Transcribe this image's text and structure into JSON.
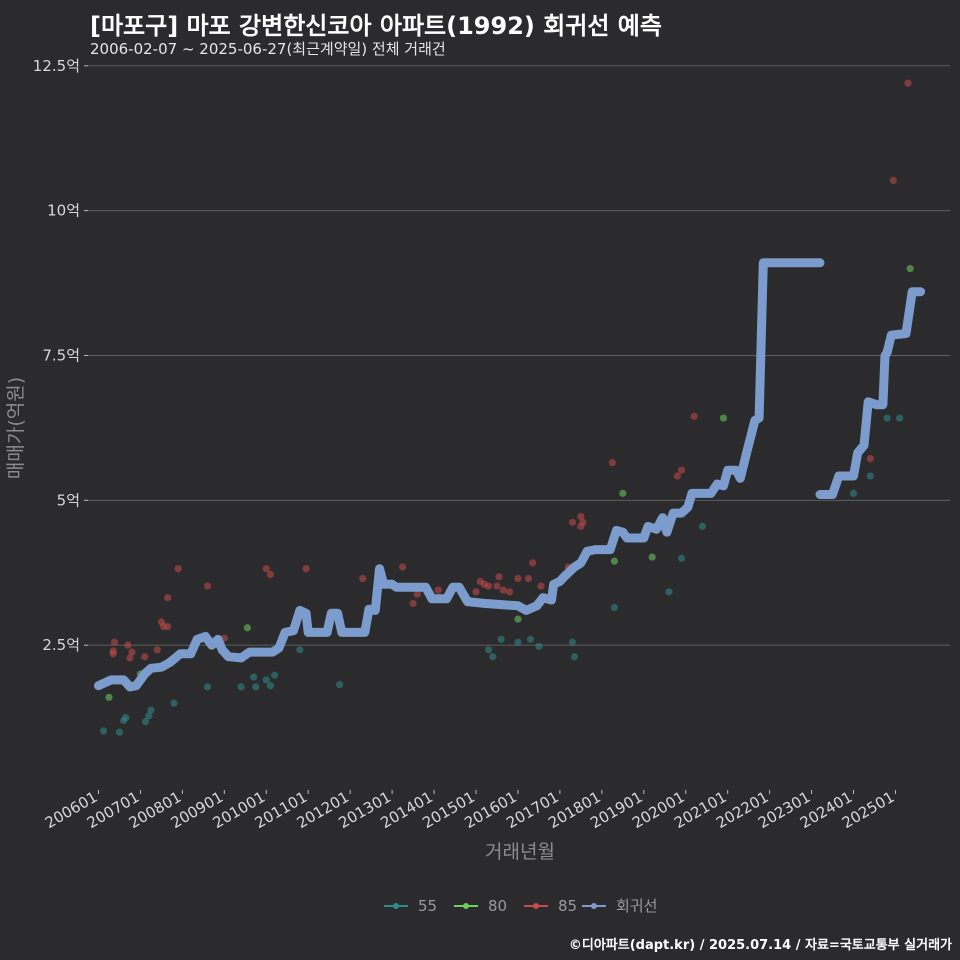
{
  "title": "[마포구] 마포 강변한신코아 아파트(1992) 회귀선 예측",
  "subtitle": "2006-02-07 ~ 2025-06-27(최근계약일) 전체 거래건",
  "credit": "©디아파트(dapt.kr) / 2025.07.14 / 자료=국토교통부 실거래가",
  "colors": {
    "s55": "#2f8c8c",
    "s80": "#6fcf5f",
    "s85": "#c94a4a",
    "reg": "#7b9ccc"
  },
  "chart_data": {
    "type": "scatter",
    "xlabel": "거래년월",
    "ylabel": "매매가(억원)",
    "ylim": [
      0.0,
      12.6
    ],
    "xlim": [
      2005.75,
      2026.3
    ],
    "yticks": [
      {
        "v": 2.5,
        "label": "2.5억"
      },
      {
        "v": 5,
        "label": "5억"
      },
      {
        "v": 7.5,
        "label": "7.5억"
      },
      {
        "v": 10,
        "label": "10억"
      },
      {
        "v": 12.5,
        "label": "12.5억"
      }
    ],
    "xticks": [
      "200601",
      "200701",
      "200801",
      "200901",
      "201001",
      "201101",
      "201201",
      "201301",
      "201401",
      "201501",
      "201601",
      "201701",
      "201801",
      "201901",
      "202001",
      "202101",
      "202201",
      "202301",
      "202401",
      "202501"
    ],
    "legend": [
      "55",
      "80",
      "85",
      "회귀선"
    ],
    "series": [
      {
        "name": "55",
        "points": [
          [
            2006.12,
            1.02
          ],
          [
            2006.5,
            1.0
          ],
          [
            2006.6,
            1.2
          ],
          [
            2006.65,
            1.25
          ],
          [
            2007.12,
            1.18
          ],
          [
            2007.2,
            1.28
          ],
          [
            2007.25,
            1.38
          ],
          [
            2007.8,
            1.5
          ],
          [
            2008.6,
            1.78
          ],
          [
            2009.4,
            1.78
          ],
          [
            2009.7,
            1.95
          ],
          [
            2009.75,
            1.78
          ],
          [
            2010.0,
            1.9
          ],
          [
            2010.1,
            1.8
          ],
          [
            2010.2,
            1.98
          ],
          [
            2010.8,
            2.42
          ],
          [
            2011.75,
            1.82
          ],
          [
            2015.3,
            2.42
          ],
          [
            2015.4,
            2.3
          ],
          [
            2015.6,
            2.6
          ],
          [
            2016.0,
            2.55
          ],
          [
            2016.3,
            2.6
          ],
          [
            2016.5,
            2.48
          ],
          [
            2017.3,
            2.55
          ],
          [
            2017.35,
            2.3
          ],
          [
            2018.3,
            3.15
          ],
          [
            2019.6,
            3.42
          ],
          [
            2019.9,
            4.0
          ],
          [
            2020.4,
            4.55
          ],
          [
            2024.0,
            5.12
          ],
          [
            2024.4,
            5.42
          ],
          [
            2024.8,
            6.42
          ],
          [
            2025.1,
            6.42
          ]
        ]
      },
      {
        "name": "80",
        "points": [
          [
            2006.25,
            1.6
          ],
          [
            2007.0,
            2.0
          ],
          [
            2009.55,
            2.8
          ],
          [
            2016.0,
            2.95
          ],
          [
            2018.3,
            3.95
          ],
          [
            2018.5,
            5.12
          ],
          [
            2019.2,
            4.02
          ],
          [
            2020.9,
            6.42
          ],
          [
            2024.75,
            7.12
          ],
          [
            2025.35,
            9.0
          ]
        ]
      },
      {
        "name": "85",
        "points": [
          [
            2006.35,
            2.35
          ],
          [
            2006.35,
            2.4
          ],
          [
            2006.38,
            2.55
          ],
          [
            2006.7,
            2.5
          ],
          [
            2006.75,
            2.28
          ],
          [
            2006.8,
            2.38
          ],
          [
            2007.1,
            2.3
          ],
          [
            2007.4,
            2.42
          ],
          [
            2007.5,
            2.9
          ],
          [
            2007.55,
            2.82
          ],
          [
            2007.65,
            2.82
          ],
          [
            2007.65,
            3.32
          ],
          [
            2007.9,
            3.82
          ],
          [
            2008.6,
            3.52
          ],
          [
            2009.0,
            2.62
          ],
          [
            2010.0,
            3.82
          ],
          [
            2010.1,
            3.72
          ],
          [
            2010.95,
            3.82
          ],
          [
            2012.3,
            3.65
          ],
          [
            2013.25,
            3.85
          ],
          [
            2013.5,
            3.22
          ],
          [
            2013.6,
            3.38
          ],
          [
            2014.1,
            3.45
          ],
          [
            2015.0,
            3.42
          ],
          [
            2015.1,
            3.6
          ],
          [
            2015.2,
            3.55
          ],
          [
            2015.3,
            3.52
          ],
          [
            2015.5,
            3.52
          ],
          [
            2015.55,
            3.68
          ],
          [
            2015.65,
            3.45
          ],
          [
            2015.8,
            3.42
          ],
          [
            2016.0,
            3.65
          ],
          [
            2016.25,
            3.65
          ],
          [
            2016.35,
            3.92
          ],
          [
            2016.55,
            3.52
          ],
          [
            2017.2,
            3.85
          ],
          [
            2017.3,
            4.62
          ],
          [
            2017.5,
            4.72
          ],
          [
            2017.5,
            4.55
          ],
          [
            2017.55,
            4.62
          ],
          [
            2018.25,
            5.65
          ],
          [
            2019.8,
            5.42
          ],
          [
            2019.9,
            5.52
          ],
          [
            2020.2,
            6.45
          ],
          [
            2024.4,
            5.72
          ],
          [
            2024.95,
            10.52
          ],
          [
            2025.3,
            12.2
          ]
        ]
      }
    ],
    "regression": [
      [
        2006.0,
        1.8
      ],
      [
        2006.15,
        1.85
      ],
      [
        2006.3,
        1.9
      ],
      [
        2006.6,
        1.9
      ],
      [
        2006.75,
        1.78
      ],
      [
        2006.9,
        1.8
      ],
      [
        2007.1,
        2.0
      ],
      [
        2007.25,
        2.1
      ],
      [
        2007.5,
        2.12
      ],
      [
        2007.7,
        2.2
      ],
      [
        2007.95,
        2.35
      ],
      [
        2008.2,
        2.35
      ],
      [
        2008.35,
        2.6
      ],
      [
        2008.55,
        2.65
      ],
      [
        2008.7,
        2.5
      ],
      [
        2008.85,
        2.6
      ],
      [
        2008.95,
        2.42
      ],
      [
        2009.1,
        2.3
      ],
      [
        2009.4,
        2.28
      ],
      [
        2009.6,
        2.38
      ],
      [
        2010.15,
        2.38
      ],
      [
        2010.3,
        2.45
      ],
      [
        2010.45,
        2.72
      ],
      [
        2010.65,
        2.75
      ],
      [
        2010.8,
        3.1
      ],
      [
        2010.95,
        3.05
      ],
      [
        2011.0,
        2.72
      ],
      [
        2011.45,
        2.72
      ],
      [
        2011.55,
        3.05
      ],
      [
        2011.7,
        3.05
      ],
      [
        2011.8,
        2.72
      ],
      [
        2012.35,
        2.72
      ],
      [
        2012.45,
        3.12
      ],
      [
        2012.6,
        3.1
      ],
      [
        2012.7,
        3.82
      ],
      [
        2012.8,
        3.55
      ],
      [
        2013.0,
        3.55
      ],
      [
        2013.1,
        3.5
      ],
      [
        2013.8,
        3.5
      ],
      [
        2013.95,
        3.3
      ],
      [
        2014.3,
        3.3
      ],
      [
        2014.45,
        3.5
      ],
      [
        2014.6,
        3.5
      ],
      [
        2014.8,
        3.25
      ],
      [
        2015.2,
        3.22
      ],
      [
        2015.6,
        3.2
      ],
      [
        2016.0,
        3.18
      ],
      [
        2016.2,
        3.1
      ],
      [
        2016.45,
        3.18
      ],
      [
        2016.6,
        3.32
      ],
      [
        2016.8,
        3.28
      ],
      [
        2016.85,
        3.55
      ],
      [
        2017.0,
        3.6
      ],
      [
        2017.1,
        3.68
      ],
      [
        2017.35,
        3.85
      ],
      [
        2017.5,
        3.92
      ],
      [
        2017.65,
        4.12
      ],
      [
        2017.85,
        4.15
      ],
      [
        2018.2,
        4.15
      ],
      [
        2018.35,
        4.48
      ],
      [
        2018.5,
        4.45
      ],
      [
        2018.6,
        4.35
      ],
      [
        2019.0,
        4.35
      ],
      [
        2019.1,
        4.55
      ],
      [
        2019.3,
        4.5
      ],
      [
        2019.45,
        4.7
      ],
      [
        2019.55,
        4.45
      ],
      [
        2019.7,
        4.78
      ],
      [
        2019.9,
        4.78
      ],
      [
        2020.05,
        4.88
      ],
      [
        2020.15,
        5.12
      ],
      [
        2020.6,
        5.12
      ],
      [
        2020.75,
        5.28
      ],
      [
        2020.9,
        5.25
      ],
      [
        2021.0,
        5.52
      ],
      [
        2021.2,
        5.52
      ],
      [
        2021.3,
        5.38
      ],
      [
        2021.45,
        5.82
      ],
      [
        2021.65,
        6.38
      ],
      [
        2021.75,
        6.42
      ],
      [
        2021.85,
        9.1
      ],
      [
        2023.2,
        9.1
      ]
    ],
    "regression2": [
      [
        2023.2,
        5.1
      ],
      [
        2023.5,
        5.1
      ],
      [
        2023.65,
        5.42
      ],
      [
        2024.0,
        5.42
      ],
      [
        2024.1,
        5.82
      ],
      [
        2024.25,
        5.95
      ],
      [
        2024.35,
        6.7
      ],
      [
        2024.55,
        6.65
      ],
      [
        2024.7,
        6.65
      ],
      [
        2024.75,
        7.5
      ],
      [
        2024.8,
        7.55
      ],
      [
        2024.9,
        7.85
      ],
      [
        2025.25,
        7.88
      ],
      [
        2025.4,
        8.6
      ],
      [
        2025.6,
        8.6
      ]
    ]
  }
}
